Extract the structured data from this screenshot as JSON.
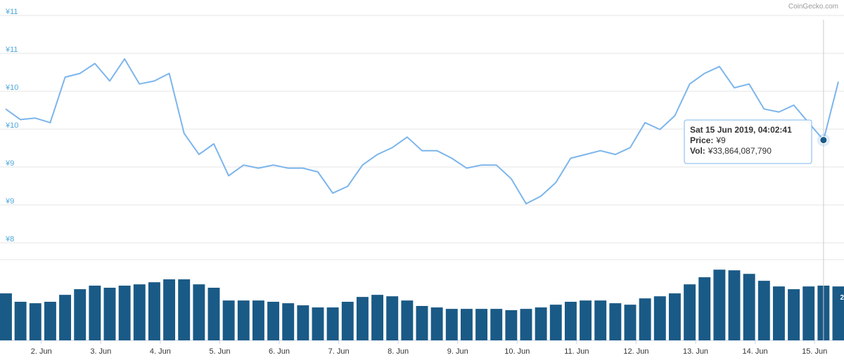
{
  "credit": "CoinGecko.com",
  "chart_data": {
    "type": "line",
    "xlim": [
      1.4,
      15.4
    ],
    "xticks": [
      {
        "value": 2,
        "label": "2. Jun"
      },
      {
        "value": 3,
        "label": "3. Jun"
      },
      {
        "value": 4,
        "label": "4. Jun"
      },
      {
        "value": 5,
        "label": "5. Jun"
      },
      {
        "value": 6,
        "label": "6. Jun"
      },
      {
        "value": 7,
        "label": "7. Jun"
      },
      {
        "value": 8,
        "label": "8. Jun"
      },
      {
        "value": 9,
        "label": "9. Jun"
      },
      {
        "value": 10,
        "label": "10. Jun"
      },
      {
        "value": 11,
        "label": "11. Jun"
      },
      {
        "value": 12,
        "label": "12. Jun"
      },
      {
        "value": 13,
        "label": "13. Jun"
      },
      {
        "value": 14,
        "label": "14. Jun"
      },
      {
        "value": 15,
        "label": "15. Jun"
      }
    ],
    "ylim": [
      8,
      11
    ],
    "yticks": [
      {
        "value": 11,
        "label": "¥11"
      },
      {
        "value": 10.5,
        "label": "¥11"
      },
      {
        "value": 10,
        "label": "¥10"
      },
      {
        "value": 9.5,
        "label": "¥10"
      },
      {
        "value": 9,
        "label": "¥9"
      },
      {
        "value": 8.5,
        "label": "¥9"
      },
      {
        "value": 8,
        "label": "¥8"
      }
    ],
    "grid": true,
    "x": [
      1.4,
      1.65,
      1.9,
      2.15,
      2.4,
      2.65,
      2.9,
      3.15,
      3.4,
      3.65,
      3.9,
      4.15,
      4.4,
      4.65,
      4.9,
      5.15,
      5.4,
      5.65,
      5.9,
      6.15,
      6.4,
      6.65,
      6.9,
      7.15,
      7.4,
      7.65,
      7.9,
      8.15,
      8.4,
      8.65,
      8.9,
      9.15,
      9.4,
      9.65,
      9.9,
      10.15,
      10.4,
      10.65,
      10.9,
      11.15,
      11.4,
      11.65,
      11.9,
      12.15,
      12.4,
      12.65,
      12.9,
      13.15,
      13.4,
      13.65,
      13.9,
      14.15,
      14.4,
      14.65,
      14.9,
      15.15,
      15.4
    ],
    "series": [
      {
        "name": "Price",
        "color": "#7cb5ec",
        "values": [
          9.71,
          9.57,
          9.59,
          9.53,
          10.13,
          10.18,
          10.31,
          10.08,
          10.37,
          10.04,
          10.08,
          10.18,
          9.39,
          9.11,
          9.25,
          8.83,
          8.97,
          8.93,
          8.97,
          8.93,
          8.93,
          8.88,
          8.6,
          8.69,
          8.97,
          9.11,
          9.2,
          9.34,
          9.16,
          9.16,
          9.06,
          8.93,
          8.97,
          8.97,
          8.79,
          8.46,
          8.56,
          8.74,
          9.06,
          9.11,
          9.16,
          9.11,
          9.2,
          9.53,
          9.44,
          9.62,
          10.04,
          10.18,
          10.27,
          9.99,
          10.04,
          9.71,
          9.67,
          9.76,
          9.53,
          9.3,
          10.07
        ]
      },
      {
        "name": "Vol",
        "color": "#1a5a86",
        "axis": "y2",
        "values": [
          29.1,
          23.9,
          23,
          23.9,
          28.2,
          31.7,
          33.9,
          32.6,
          33.9,
          34.7,
          36,
          37.8,
          37.8,
          34.7,
          32.6,
          24.7,
          24.7,
          24.7,
          23.9,
          23,
          21.7,
          20.4,
          20.4,
          23.9,
          26.9,
          28.2,
          27.3,
          24.7,
          21.3,
          20.4,
          19.5,
          19.5,
          19.5,
          19.5,
          18.7,
          19.5,
          20.4,
          22.1,
          23.9,
          24.7,
          24.7,
          23,
          22.1,
          26,
          27.3,
          29.1,
          34.7,
          39.1,
          43.8,
          43.4,
          41.2,
          36.9,
          33.4,
          31.7,
          33.4,
          33.9,
          33.4
        ]
      }
    ],
    "y2lim": [
      0,
      50
    ],
    "y2_label_fragment": "2",
    "tooltip": {
      "index": 55,
      "title": "Sat 15 Jun 2019, 04:02:41",
      "price_label": "Price:",
      "price_value": "¥9",
      "vol_label": "Vol:",
      "vol_value": "¥33,864,087,790"
    }
  }
}
